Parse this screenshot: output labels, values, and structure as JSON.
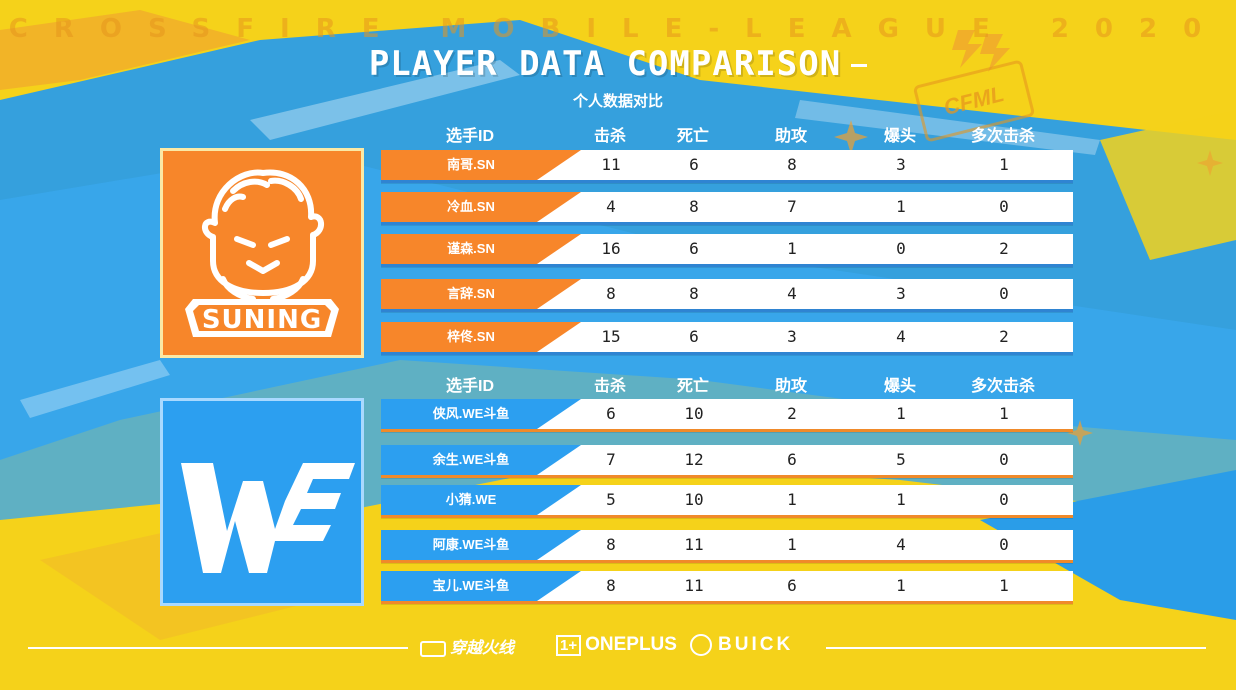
{
  "league_title": "CROSSFIRE MOBILE-LEAGUE 2020",
  "title": "PLAYER DATA COMPARISON",
  "subtitle": "个人数据对比",
  "watermark": "CFML",
  "colors": {
    "suning": "#f7862a",
    "we": "#2c9ff0",
    "background": "#f5d21a"
  },
  "headers": [
    "选手ID",
    "击杀",
    "死亡",
    "助攻",
    "爆头",
    "多次击杀"
  ],
  "teams": [
    {
      "name": "SUNING",
      "logo": "suning-lion-icon",
      "players": [
        {
          "id": "南哥.SN",
          "kills": "11",
          "deaths": "6",
          "assists": "8",
          "headshots": "3",
          "multikills": "1"
        },
        {
          "id": "冷血.SN",
          "kills": "4",
          "deaths": "8",
          "assists": "7",
          "headshots": "1",
          "multikills": "0"
        },
        {
          "id": "谨森.SN",
          "kills": "16",
          "deaths": "6",
          "assists": "1",
          "headshots": "0",
          "multikills": "2"
        },
        {
          "id": "言辞.SN",
          "kills": "8",
          "deaths": "8",
          "assists": "4",
          "headshots": "3",
          "multikills": "0"
        },
        {
          "id": "梓佟.SN",
          "kills": "15",
          "deaths": "6",
          "assists": "3",
          "headshots": "4",
          "multikills": "2"
        }
      ]
    },
    {
      "name": "WE",
      "logo": "we-logo-icon",
      "players": [
        {
          "id": "侠风.WE斗鱼",
          "kills": "6",
          "deaths": "10",
          "assists": "2",
          "headshots": "1",
          "multikills": "1"
        },
        {
          "id": "余生.WE斗鱼",
          "kills": "7",
          "deaths": "12",
          "assists": "6",
          "headshots": "5",
          "multikills": "0"
        },
        {
          "id": "小猜.WE",
          "kills": "5",
          "deaths": "10",
          "assists": "1",
          "headshots": "1",
          "multikills": "0"
        },
        {
          "id": "阿康.WE斗鱼",
          "kills": "8",
          "deaths": "11",
          "assists": "1",
          "headshots": "4",
          "multikills": "0"
        },
        {
          "id": "宝儿.WE斗鱼",
          "kills": "8",
          "deaths": "11",
          "assists": "6",
          "headshots": "1",
          "multikills": "1"
        }
      ]
    }
  ],
  "sponsors": {
    "crossfire": "穿越火线",
    "oneplus_mark": "1+",
    "oneplus": "ONEPLUS",
    "buick": "BUICK"
  }
}
